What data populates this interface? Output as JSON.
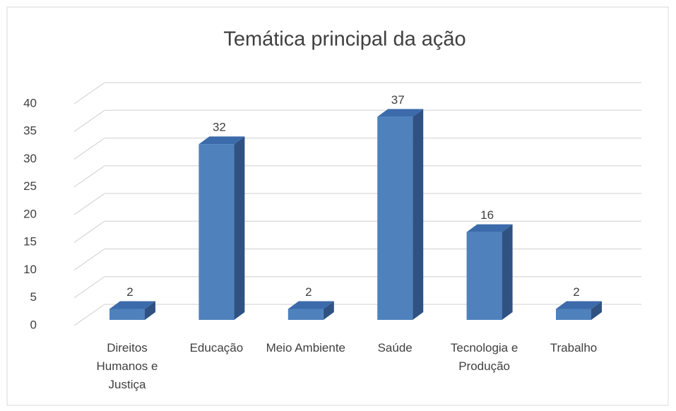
{
  "chart_data": {
    "type": "bar3d",
    "title": "Temática principal da ação",
    "categories": [
      "Direitos Humanos e Justiça",
      "Educação",
      "Meio Ambiente",
      "Saúde",
      "Tecnologia e Produção",
      "Trabalho"
    ],
    "values": [
      2,
      32,
      2,
      37,
      16,
      2
    ],
    "color": "#4f81bd",
    "ylim": [
      0,
      40
    ],
    "yticks": [
      0,
      5,
      10,
      15,
      20,
      25,
      30,
      35,
      40
    ],
    "grid": true
  }
}
